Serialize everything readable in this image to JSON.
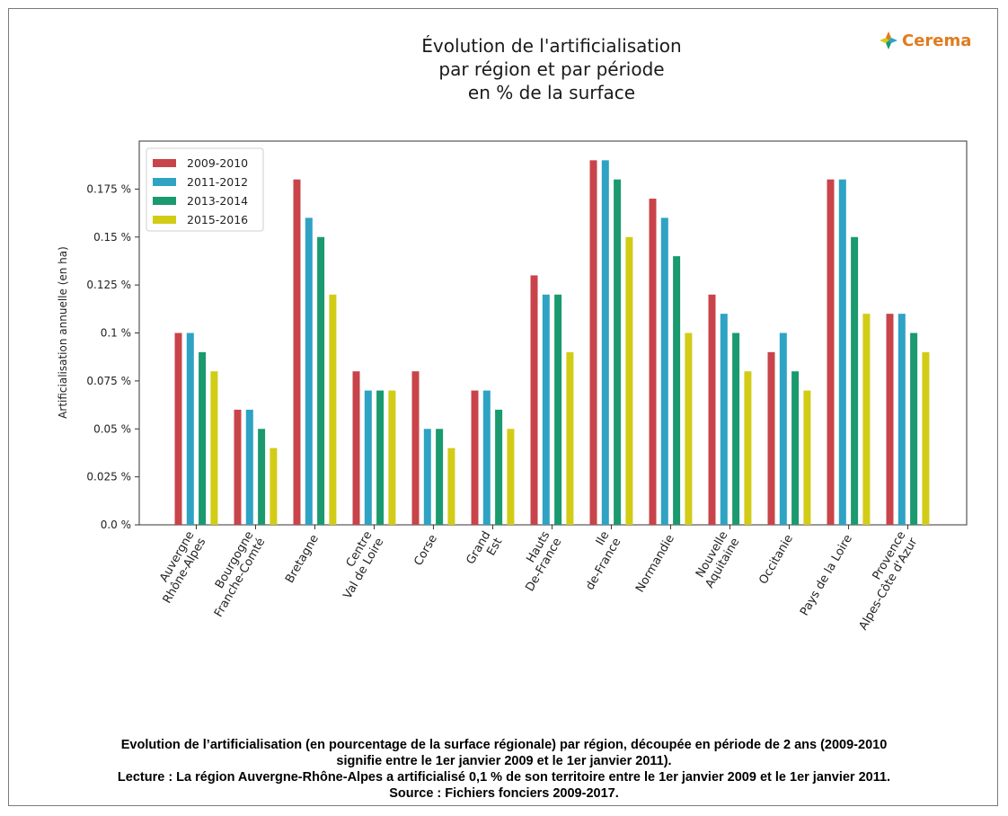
{
  "logo": {
    "text": "Cerema",
    "icon": "cerema-logo-icon",
    "color": "#e07b1f"
  },
  "caption": [
    "Evolution de l’artificialisation (en pourcentage de la surface régionale) par région, découpée en période de 2 ans (2009-2010",
    "signifie entre le 1er janvier 2009 et le 1er janvier 2011).",
    "Lecture : La région Auvergne-Rhône-Alpes a artificialisé 0,1 % de son territoire entre le 1er janvier 2009 et le 1er janvier 2011.",
    "Source : Fichiers fonciers 2009-2017."
  ],
  "chart_data": {
    "type": "bar",
    "title": [
      "Évolution de l'artificialisation",
      "par région et par période",
      "en % de la surface"
    ],
    "xlabel": "",
    "ylabel": "Artificialisation annuelle (en ha)",
    "ylim": [
      0,
      0.2
    ],
    "yticks": [
      0,
      0.025,
      0.05,
      0.075,
      0.1,
      0.125,
      0.15,
      0.175
    ],
    "ytick_labels": [
      "0.0 %",
      "0.025 %",
      "0.05 %",
      "0.075 %",
      "0.1 %",
      "0.125 %",
      "0.15 %",
      "0.175 %"
    ],
    "grid": false,
    "legend_position": "top-left",
    "categories": [
      [
        "Auvergne",
        "Rhône-Alpes"
      ],
      [
        "Bourgogne",
        "Franche-Comté"
      ],
      [
        "Bretagne"
      ],
      [
        "Centre",
        "Val de Loire"
      ],
      [
        "Corse"
      ],
      [
        "Grand",
        "Est"
      ],
      [
        "Hauts",
        "De-France"
      ],
      [
        "Ile",
        "de-France"
      ],
      [
        "Normandie"
      ],
      [
        "Nouvelle",
        "Aquitaine"
      ],
      [
        "Occitanie"
      ],
      [
        "Pays de la Loire"
      ],
      [
        "Provence",
        "Alpes-Côte d'Azur"
      ]
    ],
    "series": [
      {
        "name": "2009-2010",
        "color": "#c8444a",
        "values": [
          0.1,
          0.06,
          0.18,
          0.08,
          0.08,
          0.07,
          0.13,
          0.19,
          0.17,
          0.12,
          0.09,
          0.18,
          0.11
        ]
      },
      {
        "name": "2011-2012",
        "color": "#2ea3c4",
        "values": [
          0.1,
          0.06,
          0.16,
          0.07,
          0.05,
          0.07,
          0.12,
          0.19,
          0.16,
          0.11,
          0.1,
          0.18,
          0.11
        ]
      },
      {
        "name": "2013-2014",
        "color": "#1a9a6e",
        "values": [
          0.09,
          0.05,
          0.15,
          0.07,
          0.05,
          0.06,
          0.12,
          0.18,
          0.14,
          0.1,
          0.08,
          0.15,
          0.1
        ]
      },
      {
        "name": "2015-2016",
        "color": "#d2cc16",
        "values": [
          0.08,
          0.04,
          0.12,
          0.07,
          0.04,
          0.05,
          0.09,
          0.15,
          0.1,
          0.08,
          0.07,
          0.11,
          0.09
        ]
      }
    ]
  }
}
